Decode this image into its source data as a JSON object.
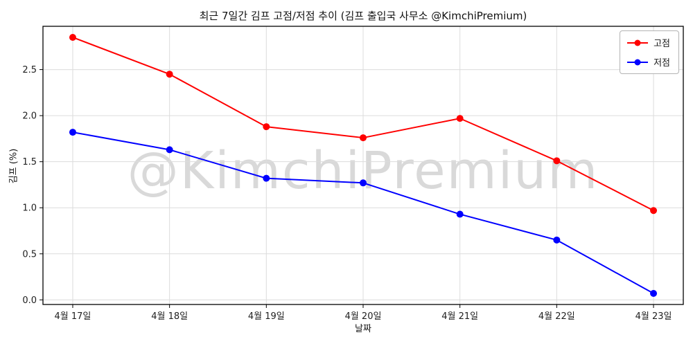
{
  "chart_data": {
    "type": "line",
    "title": "최근 7일간 김프 고점/저점 추이 (김프 출입국 사무소 @KimchiPremium)",
    "xlabel": "날짜",
    "ylabel": "김프 (%)",
    "watermark": "@KimchiPremium",
    "categories": [
      "4월 17일",
      "4월 18일",
      "4월 19일",
      "4월 20일",
      "4월 21일",
      "4월 22일",
      "4월 23일"
    ],
    "series": [
      {
        "name": "고점",
        "color": "#ff0000",
        "values": [
          2.85,
          2.45,
          1.88,
          1.76,
          1.97,
          1.51,
          0.97
        ]
      },
      {
        "name": "저점",
        "color": "#0000ff",
        "values": [
          1.82,
          1.63,
          1.32,
          1.27,
          0.93,
          0.65,
          0.07
        ]
      }
    ],
    "yticks": [
      0.0,
      0.5,
      1.0,
      1.5,
      2.0,
      2.5
    ],
    "ylim": [
      -0.05,
      2.97
    ],
    "grid": true,
    "legend_position": "top-right",
    "colors": {
      "grid": "#dcdcdc",
      "spine": "#000000",
      "tick_text": "#202020"
    }
  }
}
